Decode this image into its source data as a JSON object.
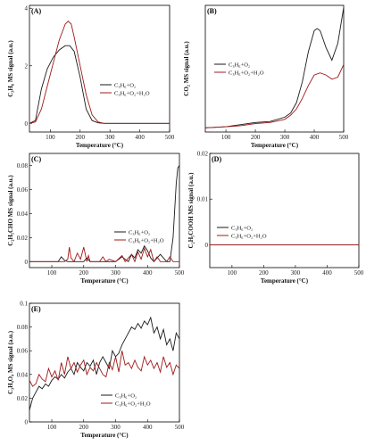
{
  "colors": {
    "black_series": "#1a1a1a",
    "red_series": "#a01818"
  },
  "chart_data": [
    {
      "id": "A",
      "type": "line",
      "panel_label": "(A)",
      "xlabel": "Temperature (°C)",
      "ylabel": "C₃H₆ MS signal (a.u.)",
      "xlim": [
        30,
        500
      ],
      "ylim": [
        -0.3,
        4.1
      ],
      "xticks": [
        100,
        200,
        300,
        400,
        500
      ],
      "yticks": [
        0,
        2,
        4
      ],
      "legend_position": "center-right",
      "series": [
        {
          "name": "C₃H₆+O₂",
          "color": "black",
          "x": [
            30,
            50,
            70,
            90,
            110,
            130,
            150,
            165,
            180,
            200,
            220,
            240,
            260,
            280,
            300,
            350,
            400,
            450,
            500
          ],
          "y": [
            0,
            0.1,
            1.2,
            1.9,
            2.3,
            2.55,
            2.7,
            2.7,
            2.5,
            1.6,
            0.5,
            0.1,
            0.02,
            0,
            0,
            0,
            0,
            0,
            0
          ]
        },
        {
          "name": "C₃H₆+O₂+H₂O",
          "color": "red",
          "x": [
            30,
            50,
            70,
            90,
            110,
            130,
            150,
            160,
            170,
            180,
            200,
            220,
            240,
            260,
            280,
            300,
            350,
            400,
            450,
            500
          ],
          "y": [
            0,
            0.05,
            0.5,
            1.3,
            2.1,
            2.9,
            3.45,
            3.55,
            3.45,
            3.0,
            2.0,
            1.0,
            0.3,
            0.05,
            0,
            0,
            0,
            0,
            0,
            0
          ]
        }
      ]
    },
    {
      "id": "B",
      "type": "line",
      "panel_label": "(B)",
      "xlabel": "Temperature (°C)",
      "ylabel": "CO₂ MS signal (a.u.)",
      "xlim": [
        30,
        500
      ],
      "ylim": [
        0,
        6
      ],
      "xticks": [
        100,
        200,
        300,
        400,
        500
      ],
      "yticks": [],
      "legend_position": "upper-left",
      "series": [
        {
          "name": "C₃H₆+O₂",
          "color": "black",
          "x": [
            30,
            100,
            150,
            200,
            250,
            300,
            320,
            340,
            360,
            380,
            400,
            410,
            420,
            440,
            460,
            480,
            500
          ],
          "y": [
            0.2,
            0.25,
            0.35,
            0.45,
            0.5,
            0.7,
            0.9,
            1.4,
            2.4,
            3.8,
            4.8,
            4.9,
            4.8,
            4.0,
            3.4,
            4.2,
            5.9
          ]
        },
        {
          "name": "C₃H₆+O₂+H₂O",
          "color": "red",
          "x": [
            30,
            100,
            150,
            200,
            250,
            300,
            320,
            340,
            360,
            380,
            400,
            420,
            440,
            460,
            480,
            500
          ],
          "y": [
            0.2,
            0.25,
            0.3,
            0.4,
            0.45,
            0.6,
            0.8,
            1.1,
            1.6,
            2.2,
            2.7,
            2.8,
            2.7,
            2.5,
            2.6,
            3.2
          ]
        }
      ]
    },
    {
      "id": "C",
      "type": "line",
      "panel_label": "(C)",
      "xlabel": "Temperature (°C)",
      "ylabel": "C₂H₅CHO MS signal (a.u.)",
      "xlim": [
        30,
        500
      ],
      "ylim": [
        -0.005,
        0.09
      ],
      "xticks": [
        100,
        200,
        300,
        400,
        500
      ],
      "yticks": [
        0,
        0.02,
        0.04,
        0.06,
        0.08
      ],
      "legend_position": "center-right",
      "series": [
        {
          "name": "C₃H₆+O₂",
          "color": "black",
          "x": [
            30,
            120,
            130,
            140,
            150,
            160,
            200,
            210,
            220,
            300,
            320,
            340,
            350,
            360,
            370,
            380,
            390,
            400,
            410,
            420,
            430,
            440,
            460,
            470,
            480,
            490,
            495,
            500
          ],
          "y": [
            0,
            0,
            0.004,
            0.001,
            0,
            0,
            0,
            0.003,
            0,
            0,
            0.004,
            0,
            0.006,
            0.003,
            0.01,
            0.007,
            0.013,
            0.009,
            0.003,
            0,
            0.003,
            0.006,
            0,
            0,
            0.02,
            0.065,
            0.078,
            0.08
          ]
        },
        {
          "name": "C₃H₆+O₂+H₂O",
          "color": "red",
          "x": [
            30,
            140,
            150,
            155,
            160,
            170,
            180,
            190,
            200,
            210,
            215,
            220,
            250,
            260,
            270,
            280,
            300,
            320,
            330,
            340,
            350,
            360,
            370,
            380,
            390,
            400,
            410,
            420,
            430,
            440,
            450,
            460,
            470,
            480,
            500
          ],
          "y": [
            0,
            0,
            0.002,
            0.012,
            0.003,
            0,
            0.007,
            0.002,
            0.012,
            0,
            0.005,
            0,
            0,
            0.004,
            0,
            0.002,
            0,
            0.005,
            0,
            0.003,
            0.006,
            0,
            0.008,
            0.002,
            0.011,
            0.004,
            0.01,
            0,
            0.004,
            0,
            0,
            0,
            0.004,
            0,
            0
          ]
        }
      ]
    },
    {
      "id": "D",
      "type": "line",
      "panel_label": "(D)",
      "xlabel": "Temperature (°C)",
      "ylabel": "C₂H₅COOH MS signal (a.u.)",
      "xlim": [
        30,
        500
      ],
      "ylim": [
        -0.005,
        0.02
      ],
      "xticks": [
        100,
        200,
        300,
        400,
        500
      ],
      "yticks": [
        0,
        0.01,
        0.02
      ],
      "legend_position": "center-left",
      "series": [
        {
          "name": "C₃H₆+O₂",
          "color": "black",
          "x": [
            30,
            500
          ],
          "y": [
            0,
            0
          ]
        },
        {
          "name": "C₃H₆+O₂+H₂O",
          "color": "red",
          "x": [
            30,
            500
          ],
          "y": [
            0,
            0
          ]
        }
      ]
    },
    {
      "id": "E",
      "type": "line",
      "panel_label": "(E)",
      "xlabel": "Temperature (°C)",
      "ylabel": "C₃H₄O₄ MS signal (a.u.)",
      "xlim": [
        30,
        500
      ],
      "ylim": [
        0,
        0.1
      ],
      "xticks": [
        100,
        200,
        300,
        400,
        500
      ],
      "yticks": [
        0,
        0.02,
        0.04,
        0.06,
        0.08,
        0.1
      ],
      "legend_position": "lower-center",
      "series": [
        {
          "name": "C₃H₆+O₂",
          "color": "black",
          "x": [
            30,
            40,
            50,
            60,
            70,
            80,
            90,
            100,
            110,
            120,
            130,
            140,
            150,
            160,
            170,
            180,
            190,
            200,
            210,
            220,
            230,
            240,
            250,
            260,
            270,
            280,
            290,
            300,
            310,
            320,
            330,
            340,
            350,
            360,
            370,
            380,
            390,
            400,
            410,
            420,
            430,
            440,
            450,
            460,
            470,
            480,
            490,
            500
          ],
          "y": [
            0.01,
            0.02,
            0.025,
            0.03,
            0.028,
            0.032,
            0.03,
            0.035,
            0.038,
            0.036,
            0.04,
            0.037,
            0.042,
            0.045,
            0.04,
            0.05,
            0.046,
            0.043,
            0.05,
            0.047,
            0.052,
            0.04,
            0.05,
            0.055,
            0.05,
            0.045,
            0.06,
            0.055,
            0.058,
            0.065,
            0.07,
            0.075,
            0.08,
            0.078,
            0.083,
            0.079,
            0.085,
            0.082,
            0.088,
            0.075,
            0.08,
            0.07,
            0.078,
            0.065,
            0.07,
            0.06,
            0.075,
            0.07
          ]
        },
        {
          "name": "C₃H₆+O₂+H₂O",
          "color": "red",
          "x": [
            30,
            40,
            50,
            60,
            70,
            80,
            90,
            100,
            110,
            120,
            130,
            140,
            150,
            160,
            170,
            180,
            190,
            200,
            210,
            220,
            230,
            240,
            250,
            260,
            270,
            280,
            290,
            300,
            310,
            320,
            330,
            340,
            350,
            360,
            370,
            380,
            390,
            400,
            410,
            420,
            430,
            440,
            450,
            460,
            470,
            480,
            490,
            500
          ],
          "y": [
            0.035,
            0.03,
            0.032,
            0.04,
            0.036,
            0.034,
            0.045,
            0.038,
            0.043,
            0.035,
            0.05,
            0.04,
            0.055,
            0.045,
            0.05,
            0.042,
            0.048,
            0.052,
            0.04,
            0.046,
            0.043,
            0.05,
            0.045,
            0.04,
            0.038,
            0.05,
            0.044,
            0.055,
            0.042,
            0.06,
            0.048,
            0.05,
            0.045,
            0.052,
            0.046,
            0.043,
            0.055,
            0.048,
            0.052,
            0.045,
            0.05,
            0.042,
            0.055,
            0.046,
            0.05,
            0.04,
            0.048,
            0.045
          ]
        }
      ]
    }
  ]
}
